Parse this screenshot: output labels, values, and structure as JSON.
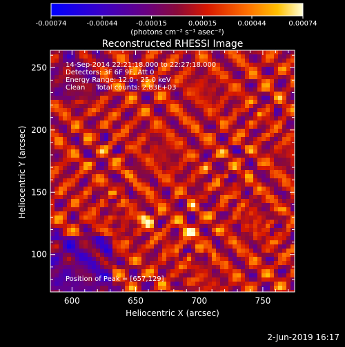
{
  "chart_data": {
    "type": "heatmap",
    "title": "Reconstructed RHESSI Image",
    "xlabel": "Heliocentric X (arcsec)",
    "ylabel": "Heliocentric Y (arcsec)",
    "xlim": [
      583,
      775
    ],
    "ylim": [
      70,
      264
    ],
    "x_ticks": [
      600,
      650,
      700,
      750
    ],
    "y_ticks": [
      100,
      150,
      200,
      250
    ],
    "colorbar": {
      "range": [
        -0.00074,
        0.00074
      ],
      "tick_values": [
        -0.00074,
        -0.00044,
        -0.00015,
        0.00015,
        0.00044,
        0.00074
      ],
      "tick_labels": [
        "-0.00074",
        "-0.00044",
        "-0.00015",
        "0.00015",
        "0.00044",
        "0.00074"
      ],
      "unit_label": "(photons cm⁻² s⁻¹ asec⁻²)"
    },
    "peak": {
      "x": 657,
      "y": 129
    },
    "annotations": [
      "14-Sep-2014 22:21:18.000 to 22:27:18.000",
      "Detectors: 3F 6F 9F, Att 0",
      "Energy Range: 12.0 - 25.0 keV",
      "Clean     Total counts: 2.83E+03"
    ],
    "peak_label": "Position of Peak = [657,129]",
    "grid": false,
    "legend": "none"
  },
  "footer": {
    "date": "2-Jun-2019 16:17"
  },
  "colors": {
    "background": "#000000",
    "foreground": "#ffffff"
  }
}
